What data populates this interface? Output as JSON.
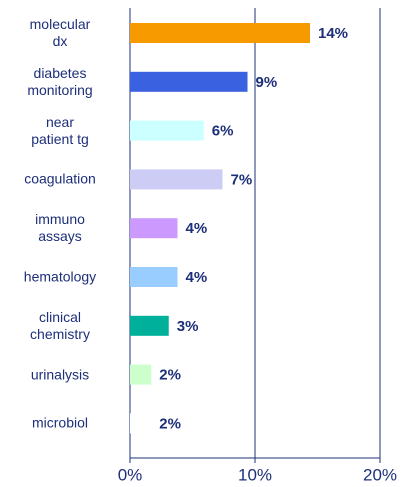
{
  "chart_data": {
    "type": "barh",
    "categories": [
      "molecular\ndx",
      "diabetes\nmonitoring",
      "near\npatient tg",
      "coagulation",
      "immuno\nassays",
      "hematology",
      "clinical\nchemistry",
      "urinalysis",
      "microbiol"
    ],
    "values": [
      14.4,
      9.4,
      5.9,
      7.4,
      3.8,
      3.8,
      3.1,
      1.7,
      1.7
    ],
    "value_labels": [
      "14%",
      "9%",
      "6%",
      "7%",
      "4%",
      "4%",
      "3%",
      "2%",
      "2%"
    ],
    "colors": [
      "#f79a00",
      "#3a62e0",
      "#ccffff",
      "#ccccf5",
      "#cc99ff",
      "#99ccff",
      "#00b09a",
      "#ccffcc",
      "#ffffff"
    ],
    "xlim": [
      0,
      20
    ],
    "xticks": [
      {
        "value": 0,
        "label": "0%"
      },
      {
        "value": 10,
        "label": "10%"
      },
      {
        "value": 20,
        "label": "20%"
      }
    ],
    "grid": true
  }
}
